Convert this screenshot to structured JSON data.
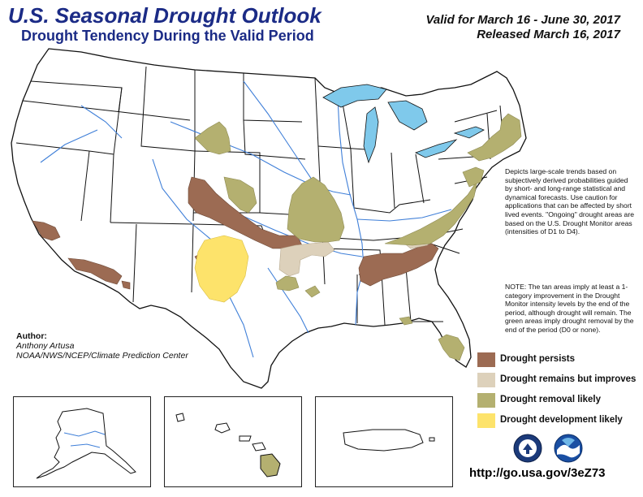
{
  "header": {
    "title": "U.S. Seasonal Drought Outlook",
    "subtitle": "Drought Tendency During the Valid Period",
    "valid": "Valid for March 16 - June 30, 2017",
    "released": "Released March 16, 2017"
  },
  "notes": {
    "description": "Depicts large-scale trends based on subjectively derived probabilities guided by short- and long-range statistical and dynamical forecasts. Use caution for applications that can be affected by short lived events. \"Ongoing\" drought areas are based on the U.S. Drought Monitor areas (intensities of D1 to D4).",
    "note": "NOTE: The tan areas imply at least a 1-category improvement in the Drought Monitor intensity levels by the end of the period, although drought will remain. The green areas imply drought removal by the end of the period (D0 or none)."
  },
  "author": {
    "label": "Author:",
    "name": "Anthony Artusa",
    "org": "NOAA/NWS/NCEP/Climate Prediction Center"
  },
  "legend": [
    {
      "label": "Drought persists",
      "color": "#9c6b53"
    },
    {
      "label": "Drought remains but improves",
      "color": "#ddd1bb"
    },
    {
      "label": "Drought removal likely",
      "color": "#b4b070"
    },
    {
      "label": "Drought development likely",
      "color": "#fde36b"
    }
  ],
  "colors": {
    "water": "#7fc9eb",
    "state_lines": "#111111",
    "rivers": "#3f7fd8",
    "title_blue": "#1b2b86"
  },
  "footer": {
    "url": "http://go.usa.gov/3eZ73"
  },
  "logos": [
    "doc-seal-icon",
    "noaa-logo-icon"
  ]
}
